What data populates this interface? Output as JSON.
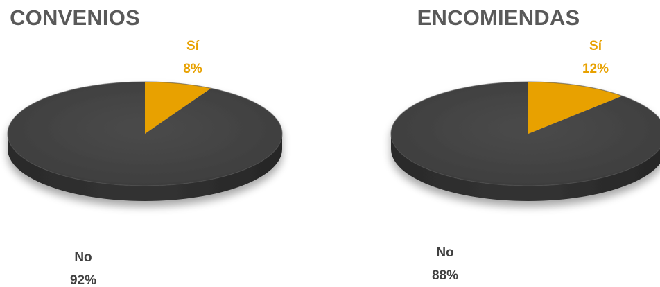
{
  "chart_data": [
    {
      "type": "pie",
      "title": "CONVENIOS",
      "slices": [
        {
          "name": "Sí",
          "value": 8,
          "label": "8%",
          "color": "#E8A100"
        },
        {
          "name": "No",
          "value": 92,
          "label": "92%",
          "color": "#404040"
        }
      ]
    },
    {
      "type": "pie",
      "title": "ENCOMIENDAS",
      "slices": [
        {
          "name": "Sí",
          "value": 12,
          "label": "12%",
          "color": "#E8A100"
        },
        {
          "name": "No",
          "value": 88,
          "label": "88%",
          "color": "#404040"
        }
      ]
    }
  ],
  "label_colors": {
    "highlight": "#E8A100",
    "default": "#404040"
  }
}
